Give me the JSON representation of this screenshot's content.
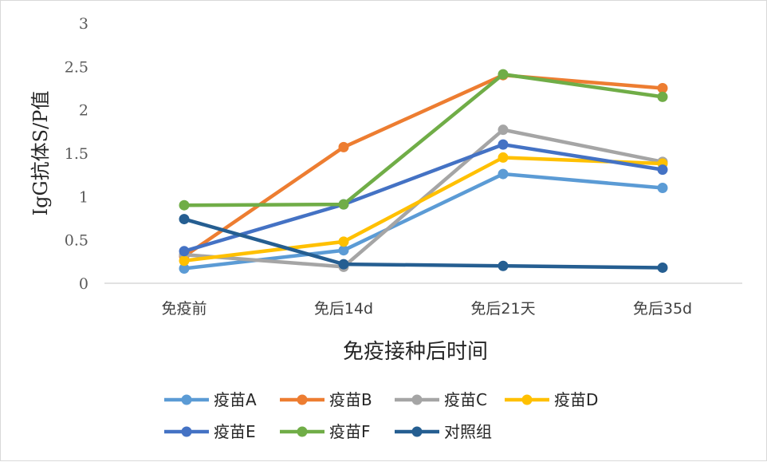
{
  "chart_data": {
    "type": "line",
    "title": "",
    "xlabel": "免疫接种后时间",
    "ylabel": "IgG抗体S/P值",
    "categories": [
      "免疫前",
      "免后14d",
      "免后21天",
      "免后35d"
    ],
    "ylim": [
      0,
      3
    ],
    "yticks": [
      "0",
      "0.5",
      "1",
      "1.5",
      "2",
      "2.5",
      "3"
    ],
    "ytick_values": [
      0,
      0.5,
      1,
      1.5,
      2,
      2.5,
      3
    ],
    "grid": false,
    "legend_position": "bottom",
    "series": [
      {
        "name": "疫苗A",
        "color": "#5b9bd5",
        "values": [
          0.17,
          0.38,
          1.26,
          1.1
        ]
      },
      {
        "name": "疫苗B",
        "color": "#ed7d31",
        "values": [
          0.31,
          1.57,
          2.4,
          2.25
        ]
      },
      {
        "name": "疫苗C",
        "color": "#a5a5a5",
        "values": [
          0.33,
          0.19,
          1.77,
          1.4
        ]
      },
      {
        "name": "疫苗D",
        "color": "#ffc000",
        "values": [
          0.26,
          0.48,
          1.45,
          1.38
        ]
      },
      {
        "name": "疫苗E",
        "color": "#4472c4",
        "values": [
          0.37,
          0.91,
          1.6,
          1.31
        ]
      },
      {
        "name": "疫苗F",
        "color": "#70ad47",
        "values": [
          0.9,
          0.91,
          2.41,
          2.15
        ]
      },
      {
        "name": "对照组",
        "color": "#255e91",
        "values": [
          0.74,
          0.22,
          0.2,
          0.18
        ]
      }
    ]
  }
}
